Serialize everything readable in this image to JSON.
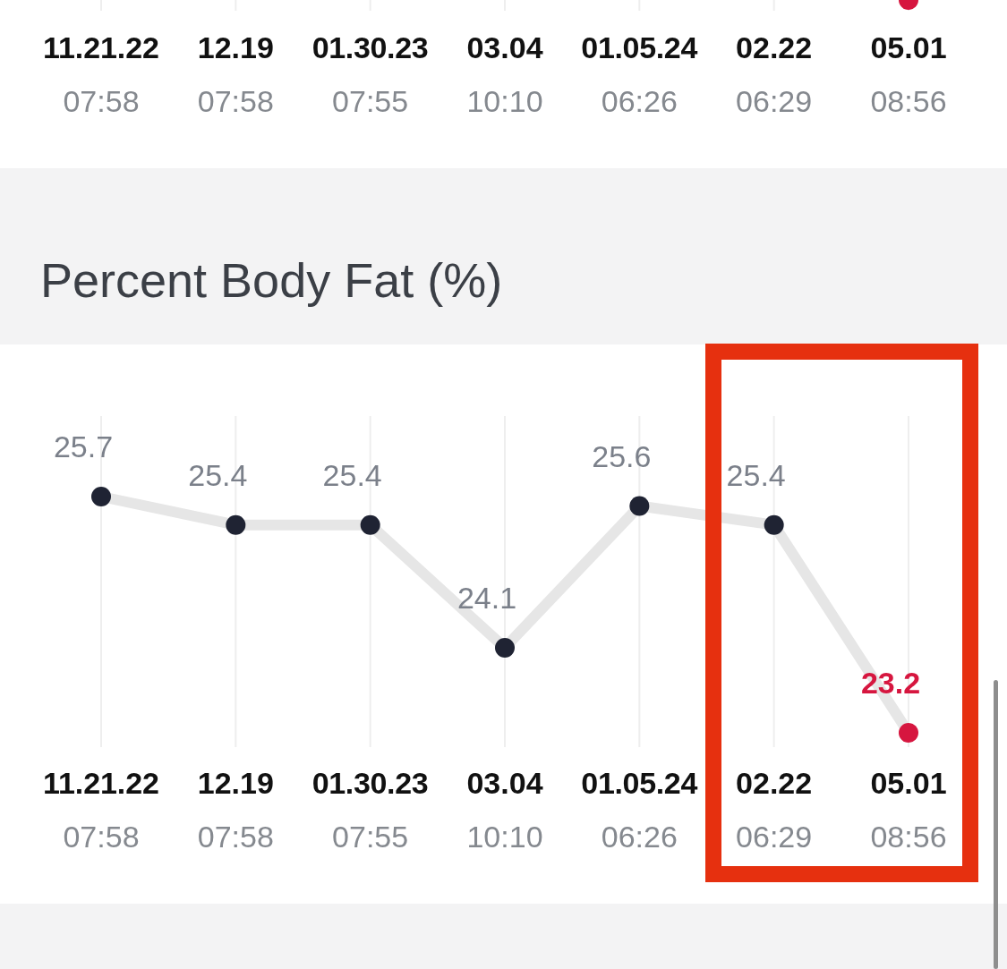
{
  "chart_data": [
    {
      "type": "other",
      "categories": [
        "11.21.22\n07:58",
        "12.19\n07:58",
        "01.30.23\n07:55",
        "03.04\n10:10",
        "01.05.24\n06:26",
        "02.22\n06:29",
        "05.01\n08:56"
      ]
    },
    {
      "type": "line",
      "title": "Percent Body Fat (%)",
      "categories": [
        "11.21.22\n07:58",
        "12.19\n07:58",
        "01.30.23\n07:55",
        "03.04\n10:10",
        "01.05.24\n06:26",
        "02.22\n06:29",
        "05.01\n08:56"
      ],
      "values": [
        25.7,
        25.4,
        25.4,
        24.1,
        25.6,
        25.4,
        23.2
      ],
      "color": "#e6e6e6",
      "colors": [
        "#1f2333",
        "#1f2333",
        "#1f2333",
        "#1f2333",
        "#1f2333",
        "#1f2333",
        "#d6163f"
      ],
      "marker": "circle",
      "grid": "x",
      "data_labels": true
    }
  ]
}
